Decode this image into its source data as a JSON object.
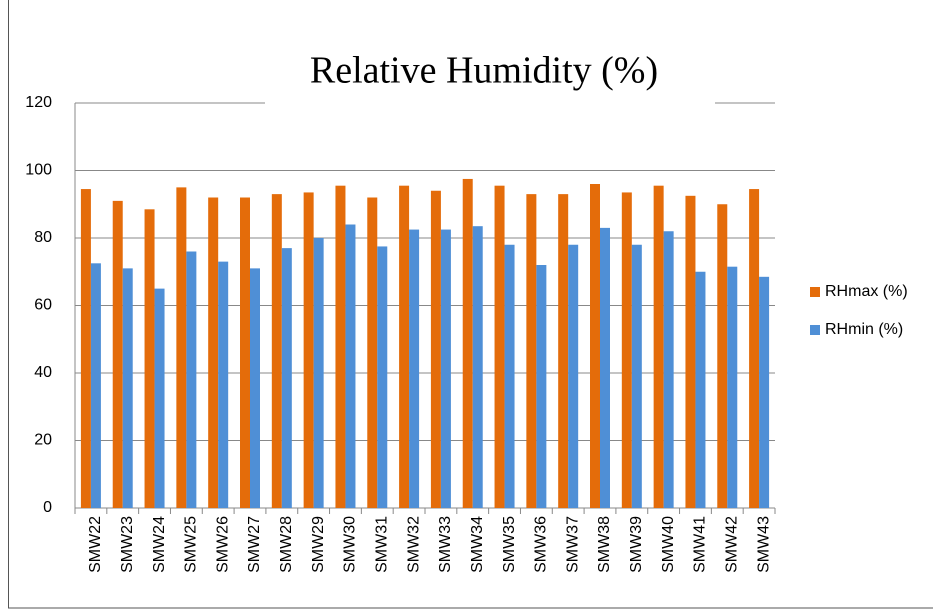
{
  "chart_data": {
    "type": "bar",
    "title": "Relative Humidity (%)",
    "categories": [
      "SMW22",
      "SMW23",
      "SMW24",
      "SMW25",
      "SMW26",
      "SMW27",
      "SMW28",
      "SMW29",
      "SMW30",
      "SMW31",
      "SMW32",
      "SMW33",
      "SMW34",
      "SMW35",
      "SMW36",
      "SMW37",
      "SMW38",
      "SMW39",
      "SMW40",
      "SMW41",
      "SMW42",
      "SMW43"
    ],
    "series": [
      {
        "name": "RHmax (%)",
        "color": "#e46c0a",
        "values": [
          94.5,
          91,
          88.5,
          95,
          92,
          92,
          93,
          93.5,
          95.5,
          92,
          95.5,
          94,
          97.5,
          95.5,
          93,
          93,
          96,
          93.5,
          95.5,
          92.5,
          90,
          94.5
        ]
      },
      {
        "name": "RHmin (%)",
        "color": "#4f8fd6",
        "values": [
          72.5,
          71,
          65,
          76,
          73,
          71,
          77,
          80,
          84,
          77.5,
          82.5,
          82.5,
          83.5,
          78,
          72,
          78,
          83,
          78,
          82,
          70,
          71.5,
          68.5
        ]
      }
    ],
    "ylim": [
      0,
      120
    ],
    "yticks": [
      0,
      20,
      40,
      60,
      80,
      100,
      120
    ],
    "grid": true,
    "legend": "right"
  }
}
